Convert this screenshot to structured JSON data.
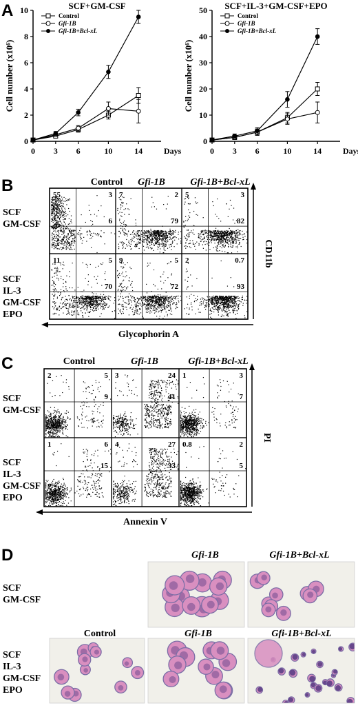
{
  "panel_letters": {
    "a": "A",
    "b": "B",
    "c": "C",
    "d": "D"
  },
  "chart_data": [
    {
      "type": "line",
      "title": "SCF+GM-CSF",
      "xlabel": "Days",
      "ylabel": "Cell number (x10⁶)",
      "x": [
        0,
        3,
        6,
        10,
        14
      ],
      "xticks": [
        "0",
        "3",
        "6",
        "10",
        "14"
      ],
      "yticks": [
        "0",
        "2",
        "4",
        "6",
        "8",
        "10"
      ],
      "xlim": [
        0,
        17
      ],
      "ylim": [
        0,
        10
      ],
      "legend_position": "top-left",
      "series": [
        {
          "name": "Control",
          "marker": "open-square",
          "x": [
            0,
            3,
            6,
            10,
            14
          ],
          "y": [
            0.1,
            0.4,
            0.9,
            2.0,
            3.5
          ],
          "err": [
            0,
            0.1,
            0.2,
            0.3,
            0.6
          ]
        },
        {
          "name": "Gfi-1B",
          "marker": "open-circle",
          "x": [
            0,
            3,
            6,
            10,
            14
          ],
          "y": [
            0.1,
            0.5,
            1.0,
            2.5,
            2.3
          ],
          "err": [
            0,
            0.1,
            0.2,
            0.5,
            0.9
          ]
        },
        {
          "name": "Gfi-1B+Bcl-xL",
          "marker": "filled-circle",
          "x": [
            0,
            3,
            6,
            10,
            14
          ],
          "y": [
            0.1,
            0.6,
            2.2,
            5.3,
            9.5
          ],
          "err": [
            0,
            0.15,
            0.25,
            0.5,
            0.5
          ]
        }
      ]
    },
    {
      "type": "line",
      "title": "SCF+IL-3+GM-CSF+EPO",
      "xlabel": "Days",
      "ylabel": "Cell number (x10⁶)",
      "x": [
        0,
        3,
        6,
        10,
        14
      ],
      "xticks": [
        "0",
        "3",
        "6",
        "10",
        "14"
      ],
      "yticks": [
        "0",
        "10",
        "20",
        "30",
        "40",
        "50"
      ],
      "xlim": [
        0,
        17
      ],
      "ylim": [
        0,
        50
      ],
      "legend_position": "top-left",
      "series": [
        {
          "name": "Control",
          "marker": "open-square",
          "x": [
            0,
            3,
            6,
            10,
            14
          ],
          "y": [
            0.5,
            1.5,
            3.5,
            9,
            20
          ],
          "err": [
            0,
            0.8,
            1.2,
            2,
            2.5
          ]
        },
        {
          "name": "Gfi-1B",
          "marker": "open-circle",
          "x": [
            0,
            3,
            6,
            10,
            14
          ],
          "y": [
            0.5,
            1.5,
            3.5,
            8.5,
            11
          ],
          "err": [
            0,
            0.8,
            1.2,
            2,
            4
          ]
        },
        {
          "name": "Gfi-1B+Bcl-xL",
          "marker": "filled-circle",
          "x": [
            0,
            3,
            6,
            10,
            14
          ],
          "y": [
            0.5,
            2,
            4,
            16,
            40
          ],
          "err": [
            0,
            0.8,
            1.2,
            3,
            3
          ]
        }
      ]
    }
  ],
  "flow_b": {
    "columns": [
      "Control",
      "Gfi-1B",
      "Gfi-1B+Bcl-xL"
    ],
    "rows": [
      "SCF\nGM-CSF",
      "SCF\nIL-3\nGM-CSF\nEPO"
    ],
    "y_axis": "CD11b",
    "x_axis": "Glycophorin A",
    "quadrants": [
      [
        {
          "ul": "55",
          "ur": "3",
          "lr": "6"
        },
        {
          "ul": "7",
          "ur": "2",
          "lr": "79"
        },
        {
          "ul": "5",
          "ur": "3",
          "lr": "82"
        }
      ],
      [
        {
          "ul": "11",
          "ur": "5",
          "lr": "70"
        },
        {
          "ul": "9",
          "ur": "5",
          "lr": "72"
        },
        {
          "ul": "2",
          "ur": "0.7",
          "lr": "93"
        }
      ]
    ]
  },
  "flow_c": {
    "columns": [
      "Control",
      "Gfi-1B",
      "Gfi-1B+Bcl-xL"
    ],
    "rows": [
      "SCF\nGM-CSF",
      "SCF\nIL-3\nGM-CSF\nEPO"
    ],
    "y_axis": "PI",
    "x_axis": "Annexin V",
    "quadrants": [
      [
        {
          "ul": "2",
          "ur": "5",
          "lr": "9"
        },
        {
          "ul": "3",
          "ur": "24",
          "lr": "41"
        },
        {
          "ul": "1",
          "ur": "3",
          "lr": "7"
        }
      ],
      [
        {
          "ul": "1",
          "ur": "6",
          "lr": "15"
        },
        {
          "ul": "4",
          "ur": "27",
          "lr": "33"
        },
        {
          "ul": "0.8",
          "ur": "2",
          "lr": "5"
        }
      ]
    ]
  },
  "micro_d": {
    "row1_label": "SCF\nGM-CSF",
    "row2_label": "SCF\nIL-3\nGM-CSF\nEPO",
    "row1_columns": [
      "Gfi-1B",
      "Gfi-1B+Bcl-xL"
    ],
    "row2_columns": [
      "Control",
      "Gfi-1B",
      "Gfi-1B+Bcl-xL"
    ]
  },
  "colors": {
    "stain_bg": "#f1f0ea",
    "cell_pink": "#d98fc0",
    "cell_border": "#7b6ea6",
    "nucleus": "#5b3f86"
  }
}
